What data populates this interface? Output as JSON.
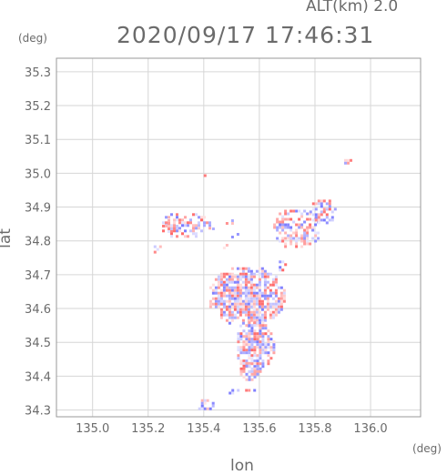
{
  "header": {
    "alt_label": "ALT(km) 2.0",
    "timestamp": "2020/09/17 17:46:31",
    "y_unit": "(deg)",
    "x_unit": "(deg)"
  },
  "chart_data": {
    "type": "heatmap",
    "title": "2020/09/17 17:46:31",
    "xlabel": "lon",
    "ylabel": "lat",
    "xlim": [
      134.87,
      136.18
    ],
    "ylim": [
      34.28,
      35.34
    ],
    "xticks": [
      "135.0",
      "135.2",
      "135.4",
      "135.6",
      "135.8",
      "136.0"
    ],
    "yticks": [
      "34.3",
      "34.4",
      "34.5",
      "34.6",
      "34.7",
      "34.8",
      "34.9",
      "35.0",
      "35.1",
      "35.2",
      "35.3"
    ],
    "grid": true,
    "colors": {
      "positive": "#ff5555",
      "negative": "#6a6aff",
      "grid": "#d6d6d6",
      "frame": "#9a9a9a"
    },
    "echo_regions": [
      {
        "lon": 135.33,
        "lat": 34.85,
        "rx": 0.09,
        "ry": 0.04,
        "density": 0.55
      },
      {
        "lon": 135.23,
        "lat": 34.78,
        "rx": 0.02,
        "ry": 0.015,
        "density": 0.7
      },
      {
        "lon": 135.27,
        "lat": 34.85,
        "rx": 0.03,
        "ry": 0.03,
        "density": 0.5
      },
      {
        "lon": 135.55,
        "lat": 34.64,
        "rx": 0.14,
        "ry": 0.09,
        "density": 0.85
      },
      {
        "lon": 135.58,
        "lat": 34.49,
        "rx": 0.07,
        "ry": 0.08,
        "density": 0.85
      },
      {
        "lon": 135.56,
        "lat": 34.42,
        "rx": 0.04,
        "ry": 0.03,
        "density": 0.7
      },
      {
        "lon": 135.73,
        "lat": 34.84,
        "rx": 0.09,
        "ry": 0.06,
        "density": 0.55
      },
      {
        "lon": 135.82,
        "lat": 34.89,
        "rx": 0.05,
        "ry": 0.04,
        "density": 0.6
      },
      {
        "lon": 135.48,
        "lat": 34.83,
        "rx": 0.06,
        "ry": 0.05,
        "density": 0.12
      },
      {
        "lon": 135.91,
        "lat": 35.04,
        "rx": 0.015,
        "ry": 0.01,
        "density": 0.9
      },
      {
        "lon": 135.52,
        "lat": 34.36,
        "rx": 0.06,
        "ry": 0.01,
        "density": 0.4
      },
      {
        "lon": 135.4,
        "lat": 34.32,
        "rx": 0.03,
        "ry": 0.02,
        "density": 0.5
      },
      {
        "lon": 135.4,
        "lat": 35.0,
        "rx": 0.01,
        "ry": 0.005,
        "density": 0.8
      },
      {
        "lon": 135.67,
        "lat": 34.73,
        "rx": 0.02,
        "ry": 0.02,
        "density": 0.6
      }
    ]
  }
}
